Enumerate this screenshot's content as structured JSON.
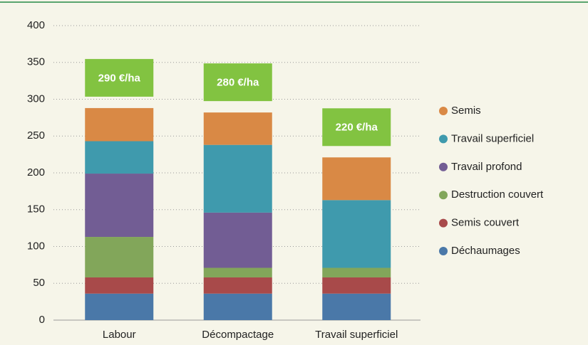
{
  "chart_data": {
    "type": "stacked_bar",
    "categories": [
      "Labour",
      "Décompactage",
      "Travail superficiel"
    ],
    "series": [
      {
        "name": "Déchaumages",
        "color": "#4a78a8",
        "values": [
          36,
          36,
          36
        ]
      },
      {
        "name": "Semis couvert",
        "color": "#a84a4a",
        "values": [
          22,
          22,
          22
        ]
      },
      {
        "name": "Destruction couvert",
        "color": "#82a65a",
        "values": [
          55,
          13,
          13
        ]
      },
      {
        "name": "Travail profond",
        "color": "#725d94",
        "values": [
          86,
          75,
          0
        ]
      },
      {
        "name": "Travail superficiel",
        "color": "#3f9aad",
        "values": [
          44,
          92,
          92
        ]
      },
      {
        "name": "Semis",
        "color": "#d98945",
        "values": [
          45,
          44,
          58
        ]
      }
    ],
    "annotations": [
      "290 €/ha",
      "280 €/ha",
      "220  €/ha"
    ],
    "annotation_color": "#82c341",
    "ylim": [
      0,
      400
    ],
    "yticks": [
      0,
      50,
      100,
      150,
      200,
      250,
      300,
      350,
      400
    ],
    "grid": true,
    "legend": "right"
  }
}
